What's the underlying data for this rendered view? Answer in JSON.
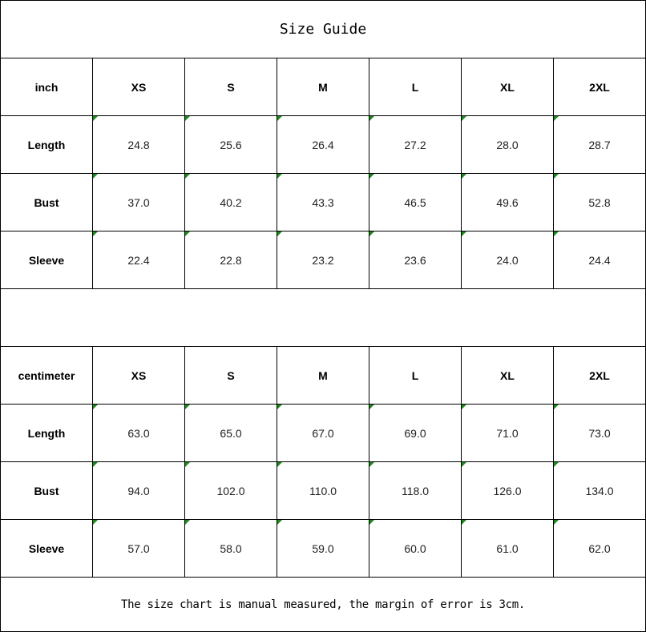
{
  "title": "Size Guide",
  "tables": [
    {
      "unit": "inch",
      "sizes": [
        "XS",
        "S",
        "M",
        "L",
        "XL",
        "2XL"
      ],
      "rows": [
        {
          "label": "Length",
          "values": [
            "24.8",
            "25.6",
            "26.4",
            "27.2",
            "28.0",
            "28.7"
          ]
        },
        {
          "label": "Bust",
          "values": [
            "37.0",
            "40.2",
            "43.3",
            "46.5",
            "49.6",
            "52.8"
          ]
        },
        {
          "label": "Sleeve",
          "values": [
            "22.4",
            "22.8",
            "23.2",
            "23.6",
            "24.0",
            "24.4"
          ]
        }
      ]
    },
    {
      "unit": "centimeter",
      "sizes": [
        "XS",
        "S",
        "M",
        "L",
        "XL",
        "2XL"
      ],
      "rows": [
        {
          "label": "Length",
          "values": [
            "63.0",
            "65.0",
            "67.0",
            "69.0",
            "71.0",
            "73.0"
          ]
        },
        {
          "label": "Bust",
          "values": [
            "94.0",
            "102.0",
            "110.0",
            "118.0",
            "126.0",
            "134.0"
          ]
        },
        {
          "label": "Sleeve",
          "values": [
            "57.0",
            "58.0",
            "59.0",
            "60.0",
            "61.0",
            "62.0"
          ]
        }
      ]
    }
  ],
  "footer": "The size chart is manual measured, the margin of error is 3cm.",
  "colors": {
    "comment_marker": "#1a8a1a",
    "grid": "#000000"
  }
}
